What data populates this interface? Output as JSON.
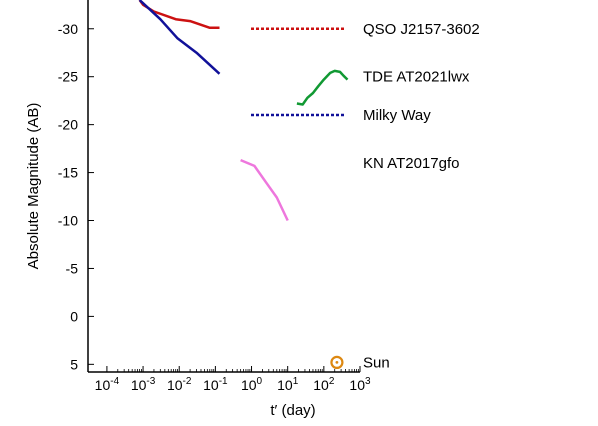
{
  "chart_data": {
    "type": "line",
    "xlabel": "t′ (day)",
    "ylabel": "Absolute Magnitude (AB)",
    "x_scale": "log",
    "y_inverted": true,
    "xlim": [
      3e-05,
      1000
    ],
    "ylim": [
      -33,
      5.8
    ],
    "x_ticks": [
      {
        "value": 0.0001,
        "base": "10",
        "exp": "-4"
      },
      {
        "value": 0.001,
        "base": "10",
        "exp": "-3"
      },
      {
        "value": 0.01,
        "base": "10",
        "exp": "-2"
      },
      {
        "value": 0.1,
        "base": "10",
        "exp": "-1"
      },
      {
        "value": 1,
        "base": "10",
        "exp": "0"
      },
      {
        "value": 10,
        "base": "10",
        "exp": "1"
      },
      {
        "value": 100,
        "base": "10",
        "exp": "2"
      },
      {
        "value": 1000,
        "base": "10",
        "exp": "3"
      }
    ],
    "y_ticks": [
      {
        "value": -30,
        "label": "-30"
      },
      {
        "value": -25,
        "label": "-25"
      },
      {
        "value": -20,
        "label": "-20"
      },
      {
        "value": -15,
        "label": "-15"
      },
      {
        "value": -10,
        "label": "-10"
      },
      {
        "value": -5,
        "label": "-5"
      },
      {
        "value": 0,
        "label": "0"
      },
      {
        "value": 5,
        "label": "5"
      }
    ],
    "series": [
      {
        "name": "QSO J2157-3602",
        "color": "#cc1111",
        "style": "dotted",
        "level": -30,
        "points": [
          [
            0.0008,
            -33.5
          ],
          [
            0.001,
            -32.5
          ],
          [
            0.002,
            -31.8
          ],
          [
            0.008,
            -31.0
          ],
          [
            0.02,
            -30.8
          ],
          [
            0.07,
            -30.1
          ],
          [
            0.13,
            -30.1
          ]
        ]
      },
      {
        "name": "TDE AT2021lwx",
        "color": "#119933",
        "style": "solid",
        "level": -25,
        "points": [
          [
            18,
            -22.2
          ],
          [
            26,
            -22.1
          ],
          [
            35,
            -22.8
          ],
          [
            50,
            -23.3
          ],
          [
            70,
            -24.0
          ],
          [
            100,
            -24.7
          ],
          [
            150,
            -25.4
          ],
          [
            200,
            -25.6
          ],
          [
            280,
            -25.5
          ],
          [
            350,
            -25.1
          ],
          [
            450,
            -24.7
          ]
        ]
      },
      {
        "name": "Milky Way",
        "color": "#111199",
        "style": "dotted",
        "level": -21,
        "points": [
          [
            0.0008,
            -33.8
          ],
          [
            0.003,
            -31.0
          ],
          [
            0.009,
            -29.0
          ],
          [
            0.03,
            -27.5
          ],
          [
            0.13,
            -25.3
          ]
        ]
      },
      {
        "name": "KN AT2017gfo",
        "color": "#ee77dd",
        "style": "solid",
        "level": -16,
        "points": [
          [
            0.5,
            -16.3
          ],
          [
            1.2,
            -15.7
          ],
          [
            2.5,
            -14.0
          ],
          [
            5,
            -12.4
          ],
          [
            10,
            -10.0
          ]
        ]
      },
      {
        "name": "Sun",
        "color": "#dd8811",
        "style": "marker",
        "level": 4.8,
        "points": [
          [
            230,
            4.8
          ]
        ]
      }
    ]
  }
}
